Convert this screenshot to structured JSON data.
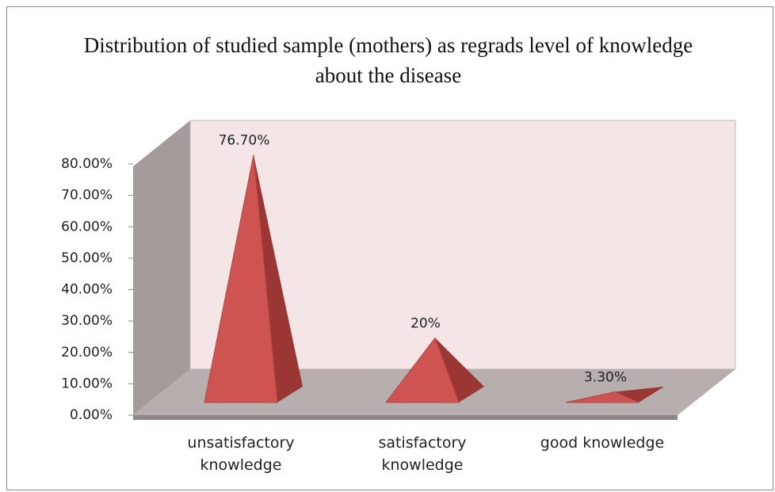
{
  "chart_data": {
    "type": "pyramid3d",
    "title": "Distribution of studied sample (mothers) as regrads level of knowledge about the disease",
    "categories": [
      "unsatisfactory knowledge",
      "satisfactory knowledge",
      "good knowledge"
    ],
    "values": [
      76.7,
      20,
      3.3
    ],
    "value_labels": [
      "76.70%",
      "20%",
      "3.30%"
    ],
    "color": "#cd5450",
    "ylim": [
      0,
      80
    ],
    "yticks": [
      {
        "value": 0,
        "label": "0.00%"
      },
      {
        "value": 10,
        "label": "10.00%"
      },
      {
        "value": 20,
        "label": "20.00%"
      },
      {
        "value": 30,
        "label": "30.00%"
      },
      {
        "value": 40,
        "label": "40.00%"
      },
      {
        "value": 50,
        "label": "50.00%"
      },
      {
        "value": 60,
        "label": "60.00%"
      },
      {
        "value": 70,
        "label": "70.00%"
      },
      {
        "value": 80,
        "label": "80.00%"
      }
    ]
  }
}
